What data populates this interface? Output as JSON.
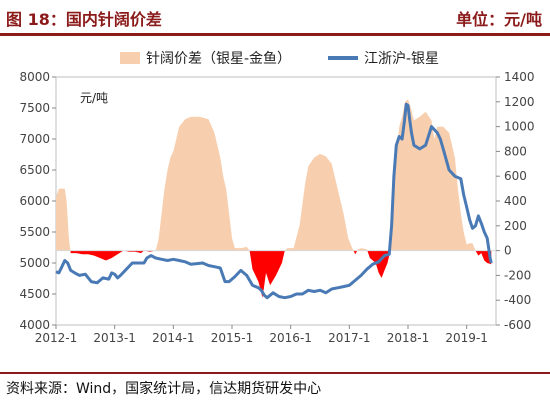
{
  "header": {
    "title": "图 18：国内针阔价差",
    "unit": "单位：元/吨"
  },
  "footer": {
    "source": "资料来源：Wind，国家统计局，信达期货研发中心"
  },
  "colors": {
    "header": "#8b1a1a",
    "spread_positive": "#f8cfae",
    "spread_negative": "#ff0000",
    "price_line": "#4a7ab5",
    "axis": "#bfbfbf"
  },
  "chart_data": {
    "type": "bar+line",
    "title": "",
    "left_axis": {
      "min": 4000,
      "max": 8000,
      "step": 500,
      "unit_label": "元/吨",
      "ticks": [
        "4000",
        "4500",
        "5000",
        "5500",
        "6000",
        "6500",
        "7000",
        "7500",
        "8000"
      ]
    },
    "right_axis": {
      "min": -600,
      "max": 1400,
      "step": 200,
      "ticks": [
        "-600",
        "-400",
        "-200",
        "0",
        "200",
        "400",
        "600",
        "800",
        "1000",
        "1200",
        "1400"
      ]
    },
    "x_axis": {
      "start": "2012-1",
      "end": "2019-6",
      "tick_labels": [
        "2012-1",
        "2013-1",
        "2014-1",
        "2015-1",
        "2016-1",
        "2017-1",
        "2018-1",
        "2019-1"
      ]
    },
    "legend": [
      "针阔价差（银星-金鱼）",
      "江浙沪-银星"
    ],
    "legend_position": "top",
    "series": [
      {
        "name": "针阔价差（银星-金鱼）",
        "axis": "right",
        "type": "area",
        "points": [
          [
            2012.0,
            430
          ],
          [
            2012.05,
            500
          ],
          [
            2012.15,
            500
          ],
          [
            2012.18,
            400
          ],
          [
            2012.22,
            100
          ],
          [
            2012.25,
            -20
          ],
          [
            2012.35,
            -20
          ],
          [
            2012.45,
            -30
          ],
          [
            2012.55,
            -30
          ],
          [
            2012.65,
            -40
          ],
          [
            2012.75,
            -60
          ],
          [
            2012.85,
            -80
          ],
          [
            2012.95,
            -60
          ],
          [
            2013.05,
            -30
          ],
          [
            2013.15,
            0
          ],
          [
            2013.25,
            -10
          ],
          [
            2013.35,
            -10
          ],
          [
            2013.45,
            -20
          ],
          [
            2013.5,
            0
          ],
          [
            2013.6,
            -10
          ],
          [
            2013.7,
            0
          ],
          [
            2013.75,
            100
          ],
          [
            2013.8,
            300
          ],
          [
            2013.85,
            500
          ],
          [
            2013.9,
            650
          ],
          [
            2013.95,
            750
          ],
          [
            2014.0,
            800
          ],
          [
            2014.05,
            900
          ],
          [
            2014.1,
            1000
          ],
          [
            2014.2,
            1060
          ],
          [
            2014.3,
            1080
          ],
          [
            2014.45,
            1080
          ],
          [
            2014.6,
            1060
          ],
          [
            2014.7,
            950
          ],
          [
            2014.8,
            750
          ],
          [
            2014.85,
            600
          ],
          [
            2014.9,
            500
          ],
          [
            2014.95,
            300
          ],
          [
            2015.0,
            100
          ],
          [
            2015.05,
            20
          ],
          [
            2015.15,
            20
          ],
          [
            2015.25,
            30
          ],
          [
            2015.3,
            0
          ],
          [
            2015.35,
            -150
          ],
          [
            2015.45,
            -250
          ],
          [
            2015.52,
            -380
          ],
          [
            2015.58,
            -180
          ],
          [
            2015.65,
            -280
          ],
          [
            2015.75,
            -200
          ],
          [
            2015.8,
            -150
          ],
          [
            2015.85,
            -100
          ],
          [
            2015.9,
            0
          ],
          [
            2015.95,
            20
          ],
          [
            2016.05,
            20
          ],
          [
            2016.15,
            200
          ],
          [
            2016.25,
            550
          ],
          [
            2016.3,
            680
          ],
          [
            2016.4,
            750
          ],
          [
            2016.5,
            780
          ],
          [
            2016.6,
            760
          ],
          [
            2016.7,
            700
          ],
          [
            2016.8,
            500
          ],
          [
            2016.9,
            300
          ],
          [
            2016.98,
            100
          ],
          [
            2017.05,
            20
          ],
          [
            2017.1,
            -30
          ],
          [
            2017.15,
            10
          ],
          [
            2017.2,
            20
          ],
          [
            2017.3,
            10
          ],
          [
            2017.35,
            -60
          ],
          [
            2017.45,
            -100
          ],
          [
            2017.5,
            -180
          ],
          [
            2017.55,
            -220
          ],
          [
            2017.6,
            -160
          ],
          [
            2017.65,
            -100
          ],
          [
            2017.7,
            0
          ],
          [
            2017.75,
            400
          ],
          [
            2017.8,
            750
          ],
          [
            2017.85,
            1000
          ],
          [
            2017.9,
            1080
          ],
          [
            2017.95,
            1200
          ],
          [
            2018.0,
            1220
          ],
          [
            2018.05,
            1150
          ],
          [
            2018.1,
            1050
          ],
          [
            2018.2,
            1080
          ],
          [
            2018.3,
            1120
          ],
          [
            2018.4,
            1050
          ],
          [
            2018.45,
            900
          ],
          [
            2018.5,
            1000
          ],
          [
            2018.6,
            1000
          ],
          [
            2018.7,
            950
          ],
          [
            2018.8,
            750
          ],
          [
            2018.85,
            500
          ],
          [
            2018.9,
            300
          ],
          [
            2018.95,
            150
          ],
          [
            2019.0,
            50
          ],
          [
            2019.05,
            60
          ],
          [
            2019.1,
            60
          ],
          [
            2019.15,
            0
          ],
          [
            2019.2,
            -40
          ],
          [
            2019.25,
            -20
          ],
          [
            2019.3,
            -80
          ],
          [
            2019.35,
            -100
          ],
          [
            2019.42,
            -110
          ]
        ]
      },
      {
        "name": "江浙沪-银星",
        "axis": "right",
        "type": "line",
        "points": [
          [
            2012.0,
            -170
          ],
          [
            2012.05,
            -180
          ],
          [
            2012.1,
            -130
          ],
          [
            2012.15,
            -80
          ],
          [
            2012.2,
            -100
          ],
          [
            2012.25,
            -160
          ],
          [
            2012.32,
            -180
          ],
          [
            2012.4,
            -200
          ],
          [
            2012.5,
            -190
          ],
          [
            2012.6,
            -250
          ],
          [
            2012.7,
            -260
          ],
          [
            2012.8,
            -220
          ],
          [
            2012.9,
            -230
          ],
          [
            2012.95,
            -180
          ],
          [
            2013.0,
            -190
          ],
          [
            2013.05,
            -220
          ],
          [
            2013.1,
            -200
          ],
          [
            2013.2,
            -150
          ],
          [
            2013.3,
            -100
          ],
          [
            2013.4,
            -100
          ],
          [
            2013.5,
            -100
          ],
          [
            2013.55,
            -60
          ],
          [
            2013.62,
            -40
          ],
          [
            2013.7,
            -60
          ],
          [
            2013.8,
            -70
          ],
          [
            2013.9,
            -80
          ],
          [
            2014.0,
            -70
          ],
          [
            2014.1,
            -80
          ],
          [
            2014.2,
            -90
          ],
          [
            2014.3,
            -110
          ],
          [
            2014.5,
            -100
          ],
          [
            2014.6,
            -120
          ],
          [
            2014.7,
            -130
          ],
          [
            2014.8,
            -140
          ],
          [
            2014.88,
            -250
          ],
          [
            2014.95,
            -250
          ],
          [
            2015.05,
            -210
          ],
          [
            2015.15,
            -160
          ],
          [
            2015.25,
            -200
          ],
          [
            2015.35,
            -280
          ],
          [
            2015.45,
            -300
          ],
          [
            2015.5,
            -320
          ],
          [
            2015.55,
            -360
          ],
          [
            2015.6,
            -380
          ],
          [
            2015.7,
            -340
          ],
          [
            2015.8,
            -370
          ],
          [
            2015.9,
            -380
          ],
          [
            2016.0,
            -370
          ],
          [
            2016.1,
            -350
          ],
          [
            2016.2,
            -350
          ],
          [
            2016.3,
            -320
          ],
          [
            2016.4,
            -330
          ],
          [
            2016.5,
            -320
          ],
          [
            2016.6,
            -340
          ],
          [
            2016.7,
            -310
          ],
          [
            2016.8,
            -300
          ],
          [
            2016.9,
            -290
          ],
          [
            2017.0,
            -280
          ],
          [
            2017.1,
            -240
          ],
          [
            2017.2,
            -200
          ],
          [
            2017.3,
            -150
          ],
          [
            2017.4,
            -110
          ],
          [
            2017.5,
            -90
          ],
          [
            2017.6,
            -40
          ],
          [
            2017.68,
            -30
          ],
          [
            2017.72,
            200
          ],
          [
            2017.76,
            600
          ],
          [
            2017.8,
            850
          ],
          [
            2017.85,
            920
          ],
          [
            2017.9,
            900
          ],
          [
            2017.94,
            1050
          ],
          [
            2017.97,
            1180
          ],
          [
            2018.0,
            1170
          ],
          [
            2018.03,
            1050
          ],
          [
            2018.06,
            950
          ],
          [
            2018.1,
            850
          ],
          [
            2018.2,
            820
          ],
          [
            2018.3,
            850
          ],
          [
            2018.4,
            1000
          ],
          [
            2018.5,
            950
          ],
          [
            2018.55,
            900
          ],
          [
            2018.6,
            820
          ],
          [
            2018.7,
            650
          ],
          [
            2018.8,
            600
          ],
          [
            2018.9,
            580
          ],
          [
            2018.95,
            450
          ],
          [
            2019.0,
            350
          ],
          [
            2019.05,
            250
          ],
          [
            2019.1,
            180
          ],
          [
            2019.15,
            200
          ],
          [
            2019.2,
            280
          ],
          [
            2019.25,
            220
          ],
          [
            2019.3,
            150
          ],
          [
            2019.35,
            100
          ],
          [
            2019.4,
            -60
          ],
          [
            2019.42,
            -100
          ]
        ]
      }
    ]
  }
}
